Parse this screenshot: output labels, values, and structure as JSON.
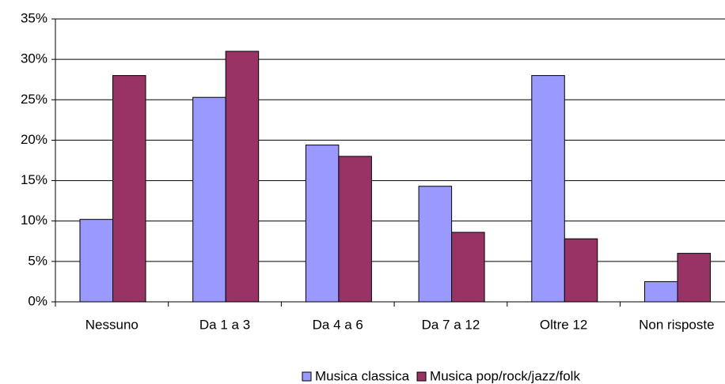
{
  "chart_data": {
    "type": "bar",
    "categories": [
      "Nessuno",
      "Da 1 a 3",
      "Da 4 a 6",
      "Da 7 a 12",
      "Oltre 12",
      "Non risposte"
    ],
    "series": [
      {
        "name": "Musica classica",
        "color": "#9999ff",
        "values": [
          10.2,
          25.3,
          19.4,
          14.3,
          28.0,
          2.5
        ]
      },
      {
        "name": "Musica pop/rock/jazz/folk",
        "color": "#993366",
        "values": [
          28.0,
          31.0,
          18.0,
          8.6,
          7.8,
          6.0
        ]
      }
    ],
    "ylim": [
      0,
      35
    ],
    "yticks": [
      {
        "value": 0,
        "label": "0%"
      },
      {
        "value": 5,
        "label": "5%"
      },
      {
        "value": 10,
        "label": "10%"
      },
      {
        "value": 15,
        "label": "15%"
      },
      {
        "value": 20,
        "label": "20%"
      },
      {
        "value": 25,
        "label": "25%"
      },
      {
        "value": 30,
        "label": "30%"
      },
      {
        "value": 35,
        "label": "35%"
      }
    ],
    "grid": true,
    "legend": "bottom"
  }
}
